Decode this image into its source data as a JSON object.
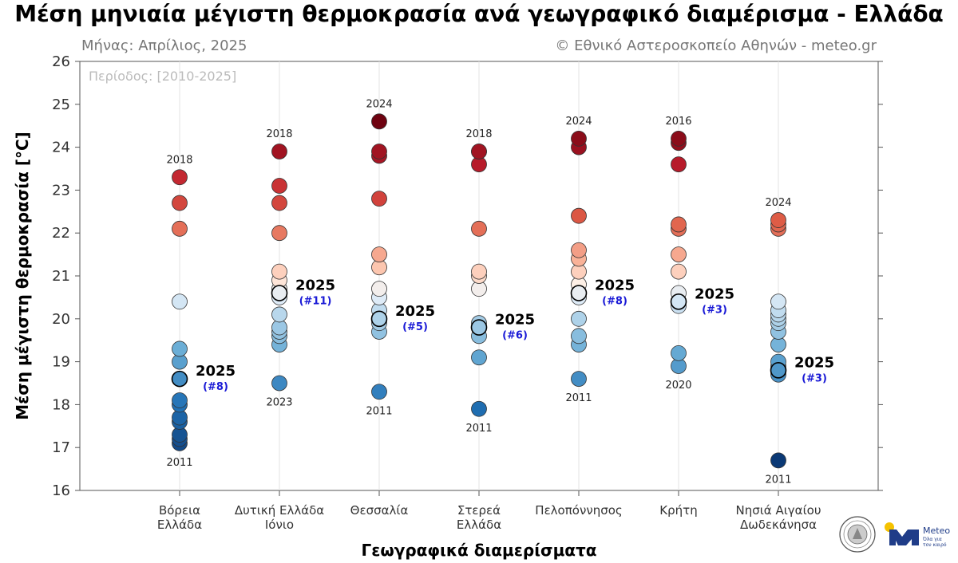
{
  "chart_data": {
    "type": "scatter",
    "title": "Μέση μηνιαία μέγιστη θερμοκρασία ανά γεωγραφικό διαμέρισμα - Ελλάδα",
    "subtitle_left": "Μήνας: Απρίλιος, 2025",
    "subtitle_right": "© Εθνικό Αστεροσκοπείο Αθηνών - meteo.gr",
    "period": "Περίοδος: [2010-2025]",
    "ylabel": "Μέση μέγιστη θερμοκρασία [°C]",
    "xlabel": "Γεωγραφικά διαμερίσματα",
    "ylim": [
      16,
      26
    ],
    "yticks": [
      "16",
      "17",
      "18",
      "19",
      "20",
      "21",
      "22",
      "23",
      "24",
      "25",
      "26"
    ],
    "grid": "vertical",
    "categories": [
      {
        "name_lines": [
          "Βόρεια",
          "Ελλάδα"
        ],
        "values": [
          23.3,
          22.7,
          22.1,
          20.4,
          19.3,
          19.0,
          18.6,
          18.1,
          18.0,
          17.7,
          17.6,
          17.3,
          17.2,
          17.1
        ],
        "current": 18.6,
        "max_year": "2018",
        "max_value": 23.3,
        "min_year": "2011",
        "min_value": 17.1,
        "current_year": "2025",
        "current_rank": "(#8)"
      },
      {
        "name_lines": [
          "Δυτική Ελλάδα",
          "Ιόνιο"
        ],
        "values": [
          23.9,
          23.1,
          22.7,
          22.0,
          21.1,
          20.9,
          20.7,
          20.6,
          20.5,
          20.1,
          19.8,
          19.7,
          19.6,
          19.4,
          18.5
        ],
        "current": 20.6,
        "max_year": "2018",
        "max_value": 23.9,
        "min_year": "2023",
        "min_value": 18.5,
        "current_year": "2025",
        "current_rank": "(#11)"
      },
      {
        "name_lines": [
          "Θεσσαλία"
        ],
        "values": [
          24.6,
          23.9,
          23.8,
          22.8,
          21.5,
          21.2,
          20.7,
          20.5,
          20.2,
          20.0,
          19.9,
          19.7,
          18.3
        ],
        "current": 20.0,
        "max_year": "2024",
        "max_value": 24.6,
        "min_year": "2011",
        "min_value": 18.3,
        "current_year": "2025",
        "current_rank": "(#5)"
      },
      {
        "name_lines": [
          "Στερεά",
          "Ελλάδα"
        ],
        "values": [
          23.9,
          23.9,
          23.6,
          22.1,
          21.1,
          21.0,
          20.7,
          19.9,
          19.8,
          19.6,
          19.1,
          17.9
        ],
        "current": 19.8,
        "max_year": "2018",
        "max_value": 23.9,
        "min_year": "2011",
        "min_value": 17.9,
        "current_year": "2025",
        "current_rank": "(#6)"
      },
      {
        "name_lines": [
          "Πελοπόννησος"
        ],
        "values": [
          24.2,
          24.0,
          22.4,
          21.6,
          21.4,
          21.1,
          20.8,
          20.6,
          20.5,
          20.0,
          19.6,
          19.4,
          18.6
        ],
        "current": 20.6,
        "max_year": "2024",
        "max_value": 24.2,
        "min_year": "2011",
        "min_value": 18.6,
        "current_year": "2025",
        "current_rank": "(#8)"
      },
      {
        "name_lines": [
          "Κρήτη"
        ],
        "values": [
          24.2,
          24.1,
          23.6,
          22.2,
          22.1,
          21.5,
          21.1,
          20.6,
          20.4,
          20.3,
          19.2,
          18.9
        ],
        "current": 20.4,
        "max_year": "2016",
        "max_value": 24.2,
        "min_year": "2020",
        "min_value": 18.9,
        "current_year": "2025",
        "current_rank": "(#3)"
      },
      {
        "name_lines": [
          "Νησιά Αιγαίου",
          "Δωδεκάνησα"
        ],
        "values": [
          22.3,
          22.2,
          22.1,
          20.4,
          20.2,
          20.1,
          20.0,
          19.9,
          19.7,
          19.4,
          19.0,
          18.9,
          18.8,
          18.7,
          16.7
        ],
        "current": 18.8,
        "max_year": "2024",
        "max_value": 22.3,
        "min_year": "2011",
        "min_value": 16.7,
        "current_year": "2025",
        "current_rank": "(#3)"
      }
    ]
  },
  "logo": {
    "name": "Meteo",
    "tagline_1": "Όλα για",
    "tagline_2": "τον καιρό",
    "brand_color": "#1f3c88",
    "sun_color": "#f5c200"
  }
}
